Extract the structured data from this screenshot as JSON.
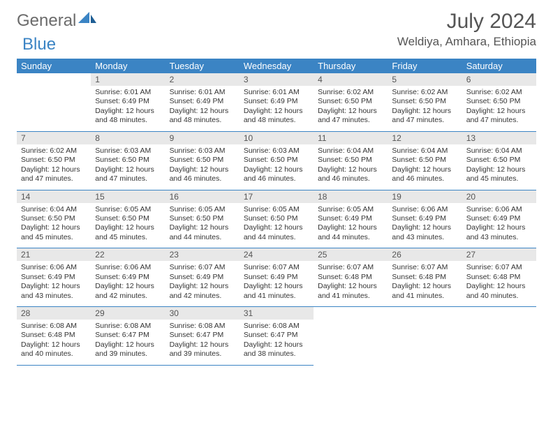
{
  "logo": {
    "part1": "General",
    "part2": "Blue"
  },
  "colors": {
    "header_bg": "#3b84c4",
    "header_fg": "#ffffff",
    "daynum_bg": "#e8e8e8",
    "rule": "#3b84c4",
    "brand_blue": "#3b84c4",
    "brand_gray": "#6b6b6b",
    "text": "#343434"
  },
  "title": "July 2024",
  "location": "Weldiya, Amhara, Ethiopia",
  "weekdays": [
    "Sunday",
    "Monday",
    "Tuesday",
    "Wednesday",
    "Thursday",
    "Friday",
    "Saturday"
  ],
  "labels": {
    "sunrise": "Sunrise: ",
    "sunset": "Sunset: ",
    "daylight": "Daylight: "
  },
  "weeks": [
    [
      null,
      {
        "d": "1",
        "sr": "6:01 AM",
        "ss": "6:49 PM",
        "dl": "12 hours and 48 minutes."
      },
      {
        "d": "2",
        "sr": "6:01 AM",
        "ss": "6:49 PM",
        "dl": "12 hours and 48 minutes."
      },
      {
        "d": "3",
        "sr": "6:01 AM",
        "ss": "6:49 PM",
        "dl": "12 hours and 48 minutes."
      },
      {
        "d": "4",
        "sr": "6:02 AM",
        "ss": "6:50 PM",
        "dl": "12 hours and 47 minutes."
      },
      {
        "d": "5",
        "sr": "6:02 AM",
        "ss": "6:50 PM",
        "dl": "12 hours and 47 minutes."
      },
      {
        "d": "6",
        "sr": "6:02 AM",
        "ss": "6:50 PM",
        "dl": "12 hours and 47 minutes."
      }
    ],
    [
      {
        "d": "7",
        "sr": "6:02 AM",
        "ss": "6:50 PM",
        "dl": "12 hours and 47 minutes."
      },
      {
        "d": "8",
        "sr": "6:03 AM",
        "ss": "6:50 PM",
        "dl": "12 hours and 47 minutes."
      },
      {
        "d": "9",
        "sr": "6:03 AM",
        "ss": "6:50 PM",
        "dl": "12 hours and 46 minutes."
      },
      {
        "d": "10",
        "sr": "6:03 AM",
        "ss": "6:50 PM",
        "dl": "12 hours and 46 minutes."
      },
      {
        "d": "11",
        "sr": "6:04 AM",
        "ss": "6:50 PM",
        "dl": "12 hours and 46 minutes."
      },
      {
        "d": "12",
        "sr": "6:04 AM",
        "ss": "6:50 PM",
        "dl": "12 hours and 46 minutes."
      },
      {
        "d": "13",
        "sr": "6:04 AM",
        "ss": "6:50 PM",
        "dl": "12 hours and 45 minutes."
      }
    ],
    [
      {
        "d": "14",
        "sr": "6:04 AM",
        "ss": "6:50 PM",
        "dl": "12 hours and 45 minutes."
      },
      {
        "d": "15",
        "sr": "6:05 AM",
        "ss": "6:50 PM",
        "dl": "12 hours and 45 minutes."
      },
      {
        "d": "16",
        "sr": "6:05 AM",
        "ss": "6:50 PM",
        "dl": "12 hours and 44 minutes."
      },
      {
        "d": "17",
        "sr": "6:05 AM",
        "ss": "6:50 PM",
        "dl": "12 hours and 44 minutes."
      },
      {
        "d": "18",
        "sr": "6:05 AM",
        "ss": "6:49 PM",
        "dl": "12 hours and 44 minutes."
      },
      {
        "d": "19",
        "sr": "6:06 AM",
        "ss": "6:49 PM",
        "dl": "12 hours and 43 minutes."
      },
      {
        "d": "20",
        "sr": "6:06 AM",
        "ss": "6:49 PM",
        "dl": "12 hours and 43 minutes."
      }
    ],
    [
      {
        "d": "21",
        "sr": "6:06 AM",
        "ss": "6:49 PM",
        "dl": "12 hours and 43 minutes."
      },
      {
        "d": "22",
        "sr": "6:06 AM",
        "ss": "6:49 PM",
        "dl": "12 hours and 42 minutes."
      },
      {
        "d": "23",
        "sr": "6:07 AM",
        "ss": "6:49 PM",
        "dl": "12 hours and 42 minutes."
      },
      {
        "d": "24",
        "sr": "6:07 AM",
        "ss": "6:49 PM",
        "dl": "12 hours and 41 minutes."
      },
      {
        "d": "25",
        "sr": "6:07 AM",
        "ss": "6:48 PM",
        "dl": "12 hours and 41 minutes."
      },
      {
        "d": "26",
        "sr": "6:07 AM",
        "ss": "6:48 PM",
        "dl": "12 hours and 41 minutes."
      },
      {
        "d": "27",
        "sr": "6:07 AM",
        "ss": "6:48 PM",
        "dl": "12 hours and 40 minutes."
      }
    ],
    [
      {
        "d": "28",
        "sr": "6:08 AM",
        "ss": "6:48 PM",
        "dl": "12 hours and 40 minutes."
      },
      {
        "d": "29",
        "sr": "6:08 AM",
        "ss": "6:47 PM",
        "dl": "12 hours and 39 minutes."
      },
      {
        "d": "30",
        "sr": "6:08 AM",
        "ss": "6:47 PM",
        "dl": "12 hours and 39 minutes."
      },
      {
        "d": "31",
        "sr": "6:08 AM",
        "ss": "6:47 PM",
        "dl": "12 hours and 38 minutes."
      },
      null,
      null,
      null
    ]
  ]
}
